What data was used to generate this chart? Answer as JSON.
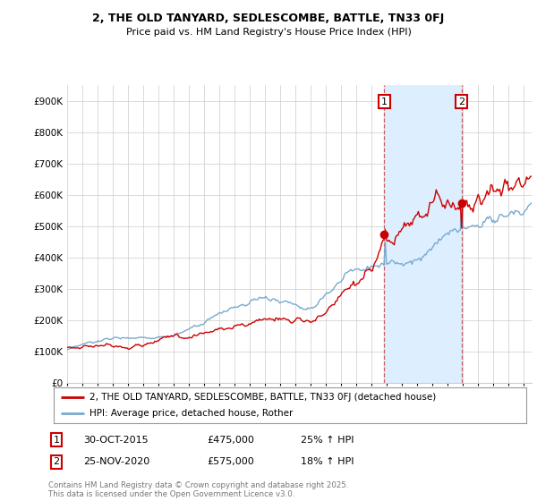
{
  "title": "2, THE OLD TANYARD, SEDLESCOMBE, BATTLE, TN33 0FJ",
  "subtitle": "Price paid vs. HM Land Registry's House Price Index (HPI)",
  "legend_line1": "2, THE OLD TANYARD, SEDLESCOMBE, BATTLE, TN33 0FJ (detached house)",
  "legend_line2": "HPI: Average price, detached house, Rother",
  "footer": "Contains HM Land Registry data © Crown copyright and database right 2025.\nThis data is licensed under the Open Government Licence v3.0.",
  "annotation1": {
    "num": "1",
    "date": "30-OCT-2015",
    "price": "£475,000",
    "hpi": "25% ↑ HPI"
  },
  "annotation2": {
    "num": "2",
    "date": "25-NOV-2020",
    "price": "£575,000",
    "hpi": "18% ↑ HPI"
  },
  "vline1_x": 2015.83,
  "vline2_x": 2020.9,
  "point1_x": 2015.83,
  "point1_y": 475000,
  "point2_x": 2020.9,
  "point2_y": 575000,
  "ylim": [
    0,
    950000
  ],
  "xlim": [
    1995,
    2025.5
  ],
  "red_color": "#cc0000",
  "blue_color": "#7aaad0",
  "vline_color": "#cc4444",
  "shade_color": "#ddeeff",
  "background_color": "#ffffff",
  "grid_color": "#cccccc"
}
